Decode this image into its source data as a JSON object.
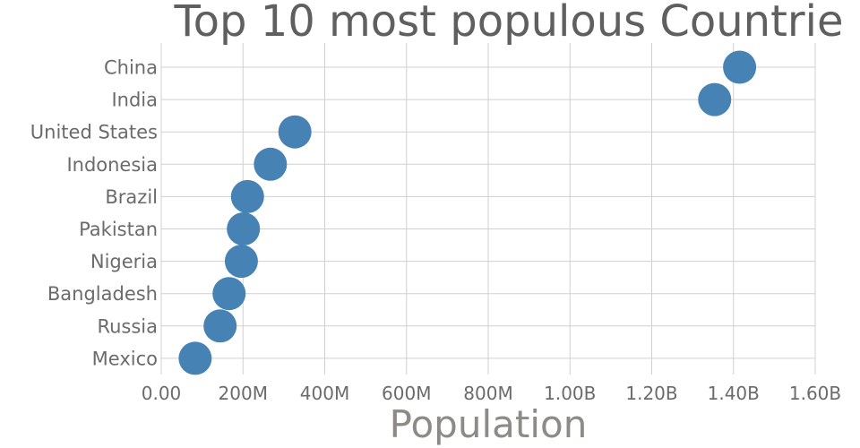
{
  "chart_data": {
    "type": "scatter",
    "title": "Top 10 most populous Countrie",
    "xlabel": "Population",
    "ylabel": "",
    "xlim": [
      0,
      1600000000
    ],
    "x_ticks": [
      {
        "value": 0,
        "label": "0.00"
      },
      {
        "value": 200000000,
        "label": "200M"
      },
      {
        "value": 400000000,
        "label": "400M"
      },
      {
        "value": 600000000,
        "label": "600M"
      },
      {
        "value": 800000000,
        "label": "800M"
      },
      {
        "value": 1000000000,
        "label": "1.00B"
      },
      {
        "value": 1200000000,
        "label": "1.20B"
      },
      {
        "value": 1400000000,
        "label": "1.40B"
      },
      {
        "value": 1600000000,
        "label": "1.60B"
      }
    ],
    "categories": [
      "China",
      "India",
      "United States",
      "Indonesia",
      "Brazil",
      "Pakistan",
      "Nigeria",
      "Bangladesh",
      "Russia",
      "Mexico"
    ],
    "values": [
      1415000000,
      1354000000,
      327000000,
      267000000,
      211000000,
      201000000,
      196000000,
      166000000,
      144000000,
      83000000
    ],
    "grid": true,
    "legend": "none",
    "marker_color": "#4682b4"
  }
}
